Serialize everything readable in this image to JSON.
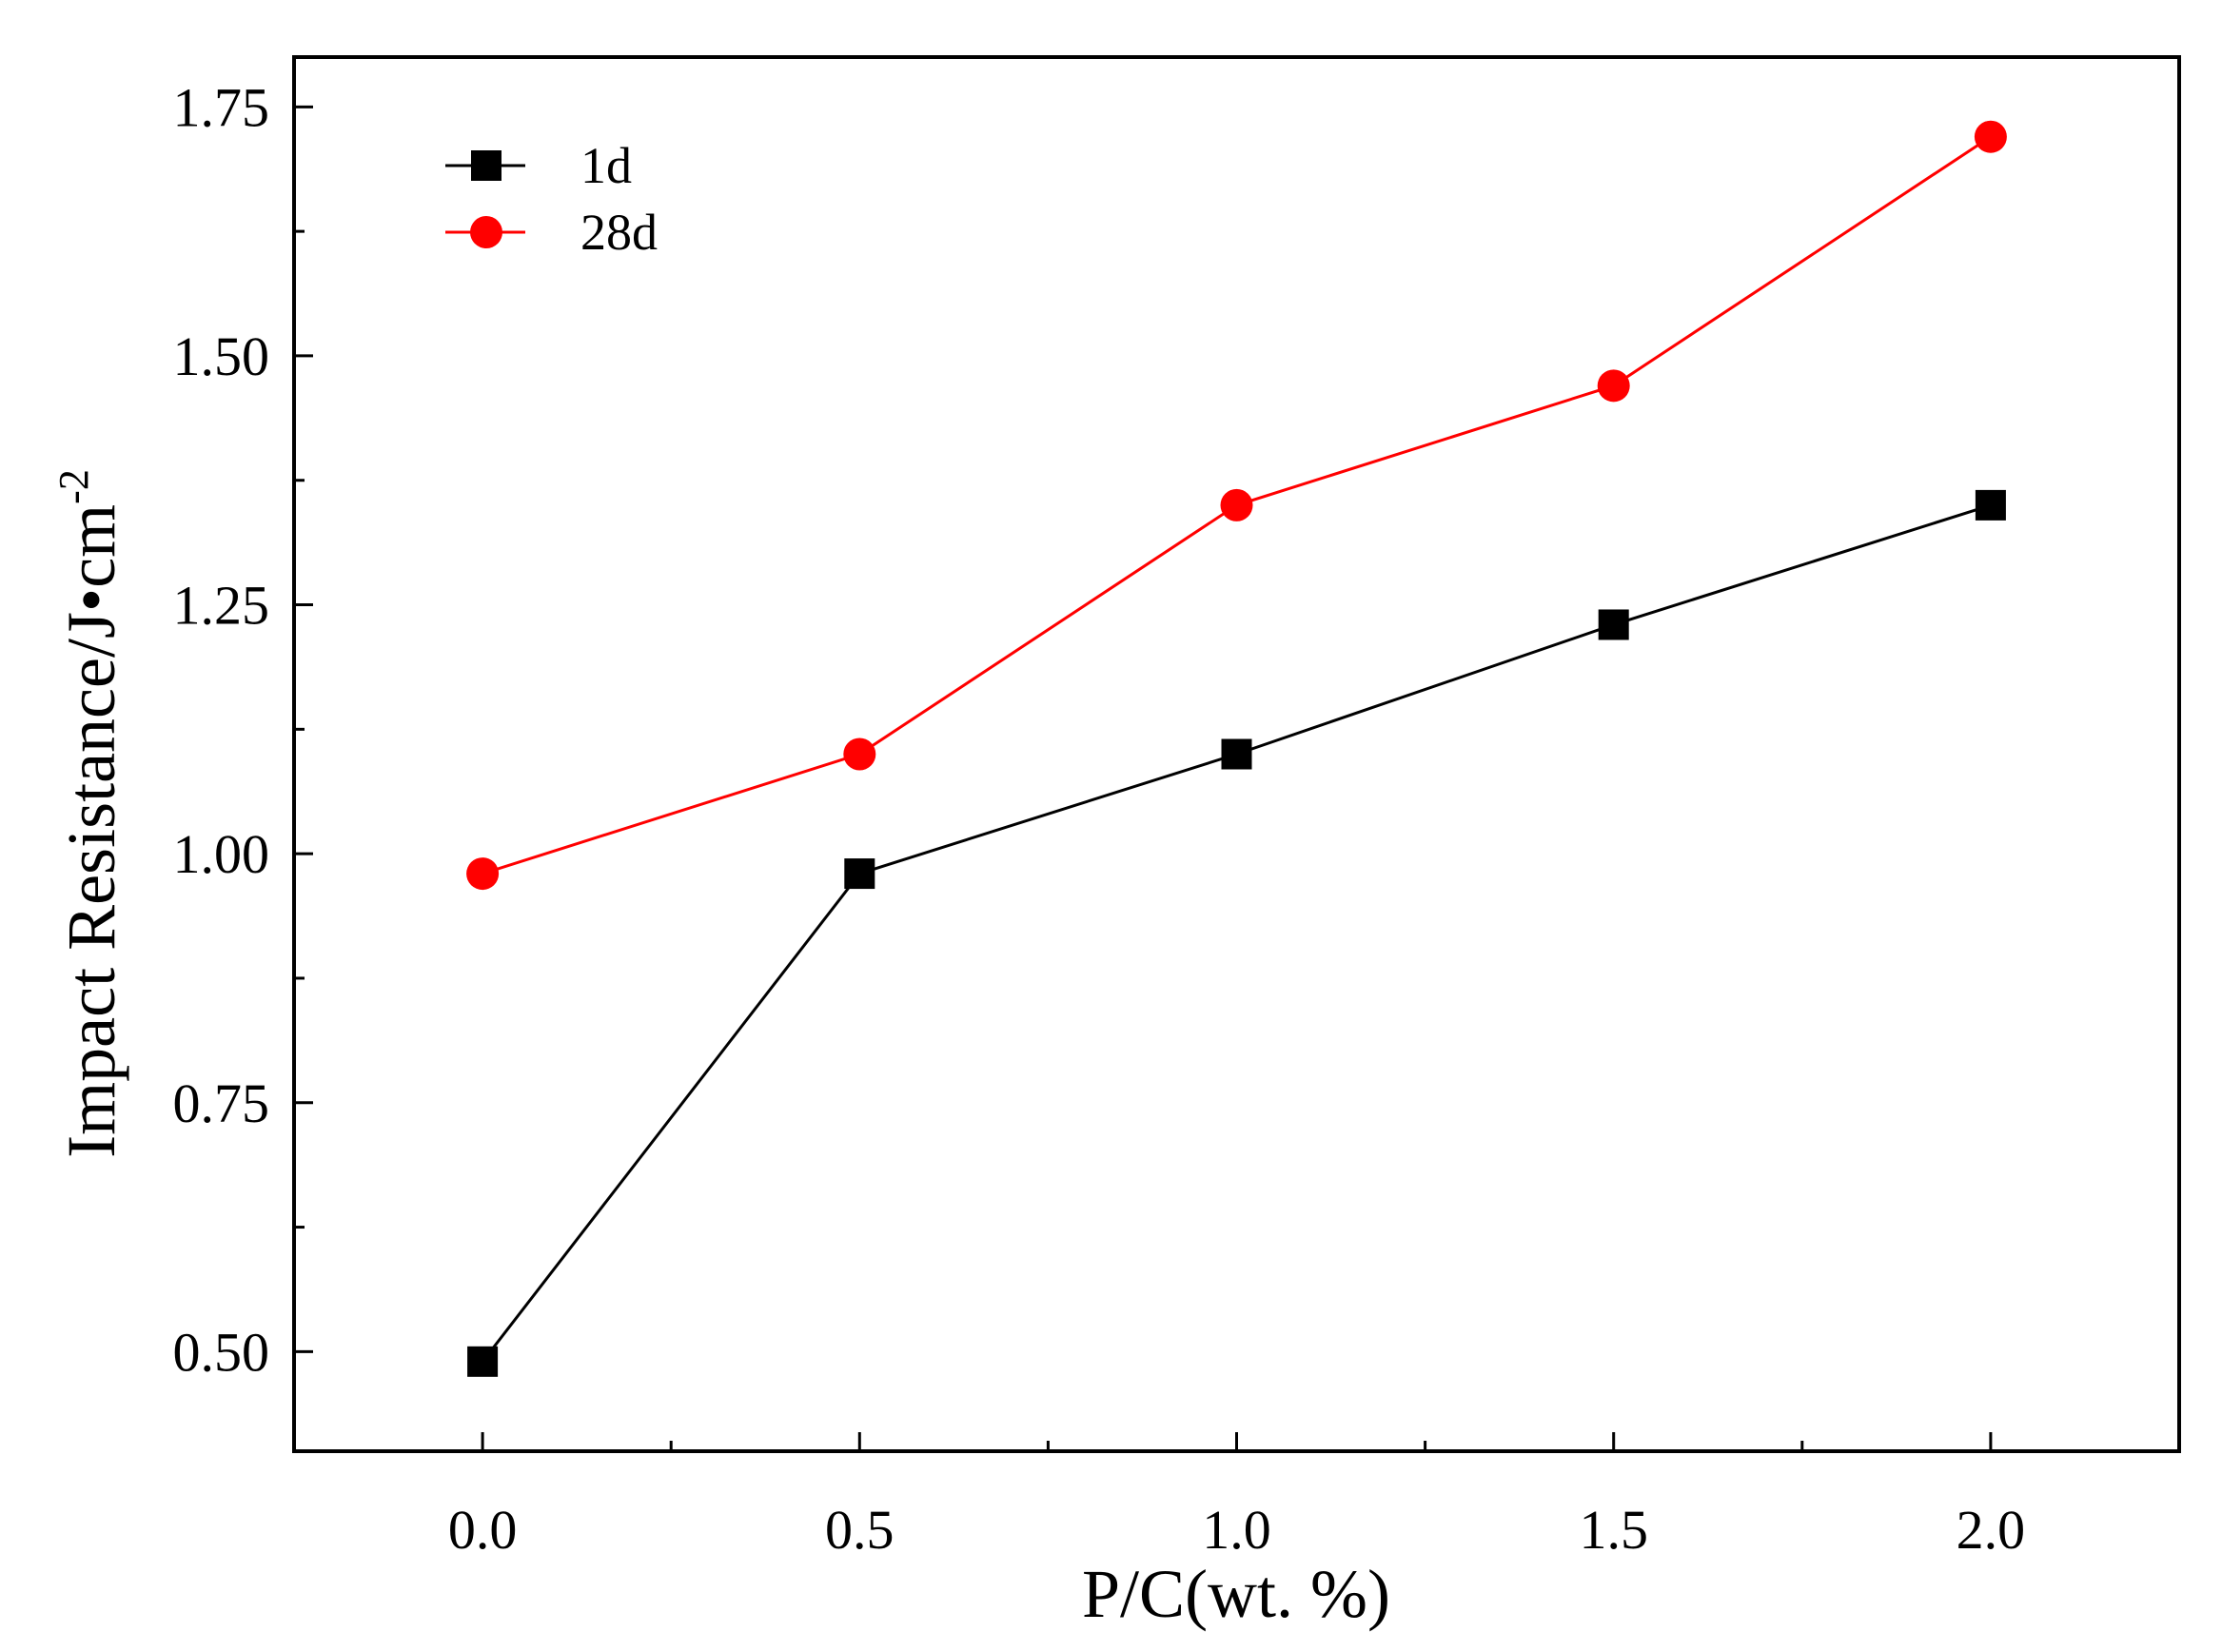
{
  "chart_data": {
    "type": "line",
    "title": "",
    "xlabel": "P/C(wt. %)",
    "ylabel": "Impact Resistance/J•cm",
    "ylabel_superscript": "-2",
    "xlim": [
      -0.25,
      2.25
    ],
    "ylim": [
      0.4,
      1.8
    ],
    "x": [
      0.0,
      0.5,
      1.0,
      1.5,
      2.0
    ],
    "x_major_ticks": [
      0.0,
      0.5,
      1.0,
      1.5,
      2.0
    ],
    "x_tick_labels": [
      "0.0",
      "0.5",
      "1.0",
      "1.5",
      "2.0"
    ],
    "x_minor_ticks": [
      0.25,
      0.75,
      1.25,
      1.75
    ],
    "y_major_ticks": [
      0.5,
      0.75,
      1.0,
      1.25,
      1.5,
      1.75
    ],
    "y_tick_labels": [
      "0.50",
      "0.75",
      "1.00",
      "1.25",
      "1.50",
      "1.75"
    ],
    "y_minor_ticks": [
      0.625,
      0.875,
      1.125,
      1.375,
      1.625
    ],
    "grid": false,
    "legend_position": "top-left",
    "series": [
      {
        "name": "1d",
        "color": "#000000",
        "marker": "square",
        "values": [
          0.49,
          0.98,
          1.1,
          1.23,
          1.35
        ]
      },
      {
        "name": "28d",
        "color": "#ff0000",
        "marker": "circle",
        "values": [
          0.98,
          1.1,
          1.35,
          1.47,
          1.72
        ]
      }
    ]
  }
}
